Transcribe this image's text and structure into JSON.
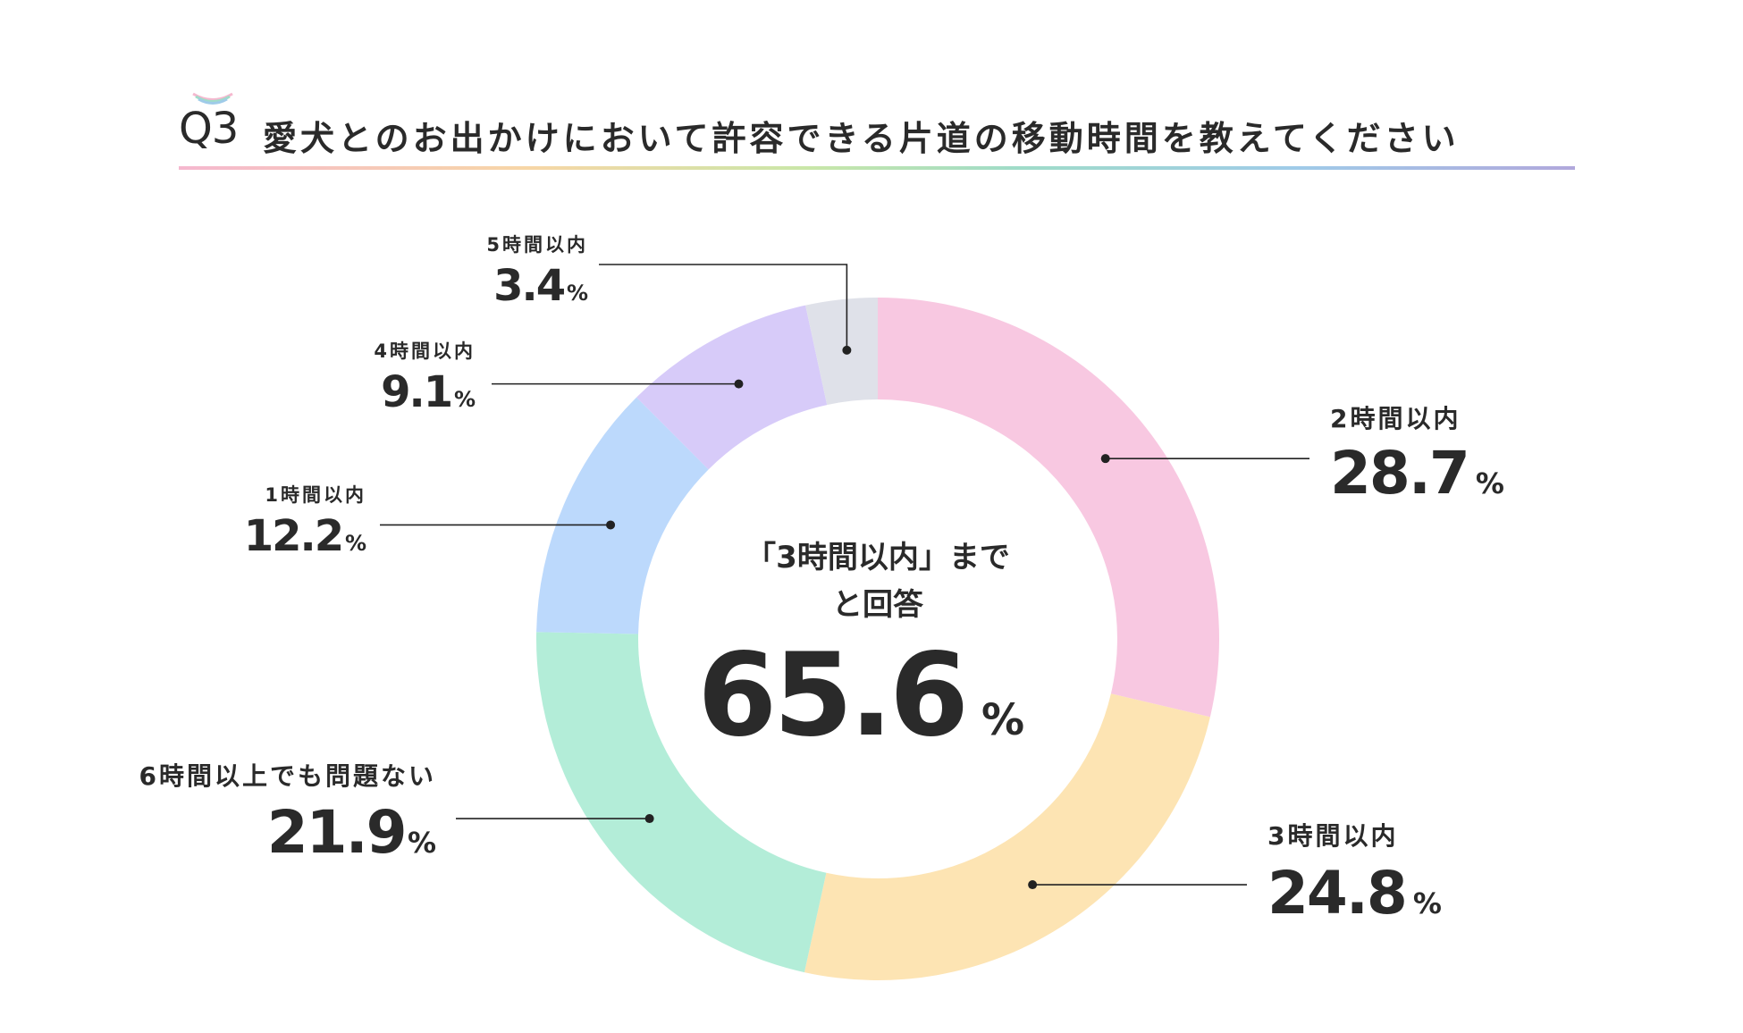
{
  "header": {
    "badge": "Q3",
    "title": "愛犬とのお出かけにおいて許容できる片道の移動時間を教えてください"
  },
  "center": {
    "line1": "「3時間以内」まで",
    "line2": "と回答",
    "value": "65.6",
    "unit": "%"
  },
  "colors": {
    "accent_rule": [
      "#f5b8cf",
      "#f7d6a6",
      "#c9e7a8",
      "#9fdcc8",
      "#9fcbe9",
      "#b1a8dc"
    ]
  },
  "chart_data": {
    "type": "pie",
    "title": "愛犬とのお出かけにおいて許容できる片道の移動時間を教えてください",
    "unit": "%",
    "slices": [
      {
        "label": "2時間以内",
        "value": 28.7,
        "display": "28.7",
        "color": "#f8c8e1"
      },
      {
        "label": "3時間以内",
        "value": 24.8,
        "display": "24.8",
        "color": "#fde4b3"
      },
      {
        "label": "6時間以上でも問題ない",
        "value": 21.9,
        "display": "21.9",
        "color": "#b3edd8"
      },
      {
        "label": "1時間以内",
        "value": 12.2,
        "display": "12.2",
        "color": "#bcd9fc"
      },
      {
        "label": "4時間以内",
        "value": 9.1,
        "display": "9.1",
        "color": "#d7cbf9"
      },
      {
        "label": "5時間以内",
        "value": 3.4,
        "display": "3.4",
        "color": "#dfe1e9"
      }
    ]
  }
}
